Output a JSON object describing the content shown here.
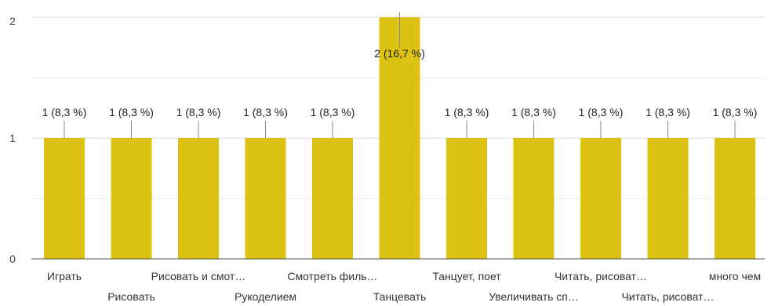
{
  "chart_data": {
    "type": "bar",
    "categories": [
      "Играть",
      "Рисовать",
      "Рисовать и смот…",
      "Рукоделием",
      "Смотреть филь…",
      "Танцевать",
      "Танцует, поет",
      "Увеличивать сп…",
      "Читать, рисоват…",
      "Читать, рисоват…",
      "много чем"
    ],
    "values": [
      1,
      1,
      1,
      1,
      1,
      2,
      1,
      1,
      1,
      1,
      1
    ],
    "data_labels": [
      "1 (8,3 %)",
      "1 (8,3 %)",
      "1 (8,3 %)",
      "1 (8,3 %)",
      "1 (8,3 %)",
      "2 (16,7 %)",
      "1 (8,3 %)",
      "1 (8,3 %)",
      "1 (8,3 %)",
      "1 (8,3 %)",
      "1 (8,3 %)"
    ],
    "y_ticks": [
      "0",
      "1",
      "2"
    ],
    "ylim": [
      0,
      2
    ],
    "grid": true,
    "bar_color": "#dcc213",
    "grid_color": "#e8e8e8",
    "axis_color": "#555555"
  }
}
